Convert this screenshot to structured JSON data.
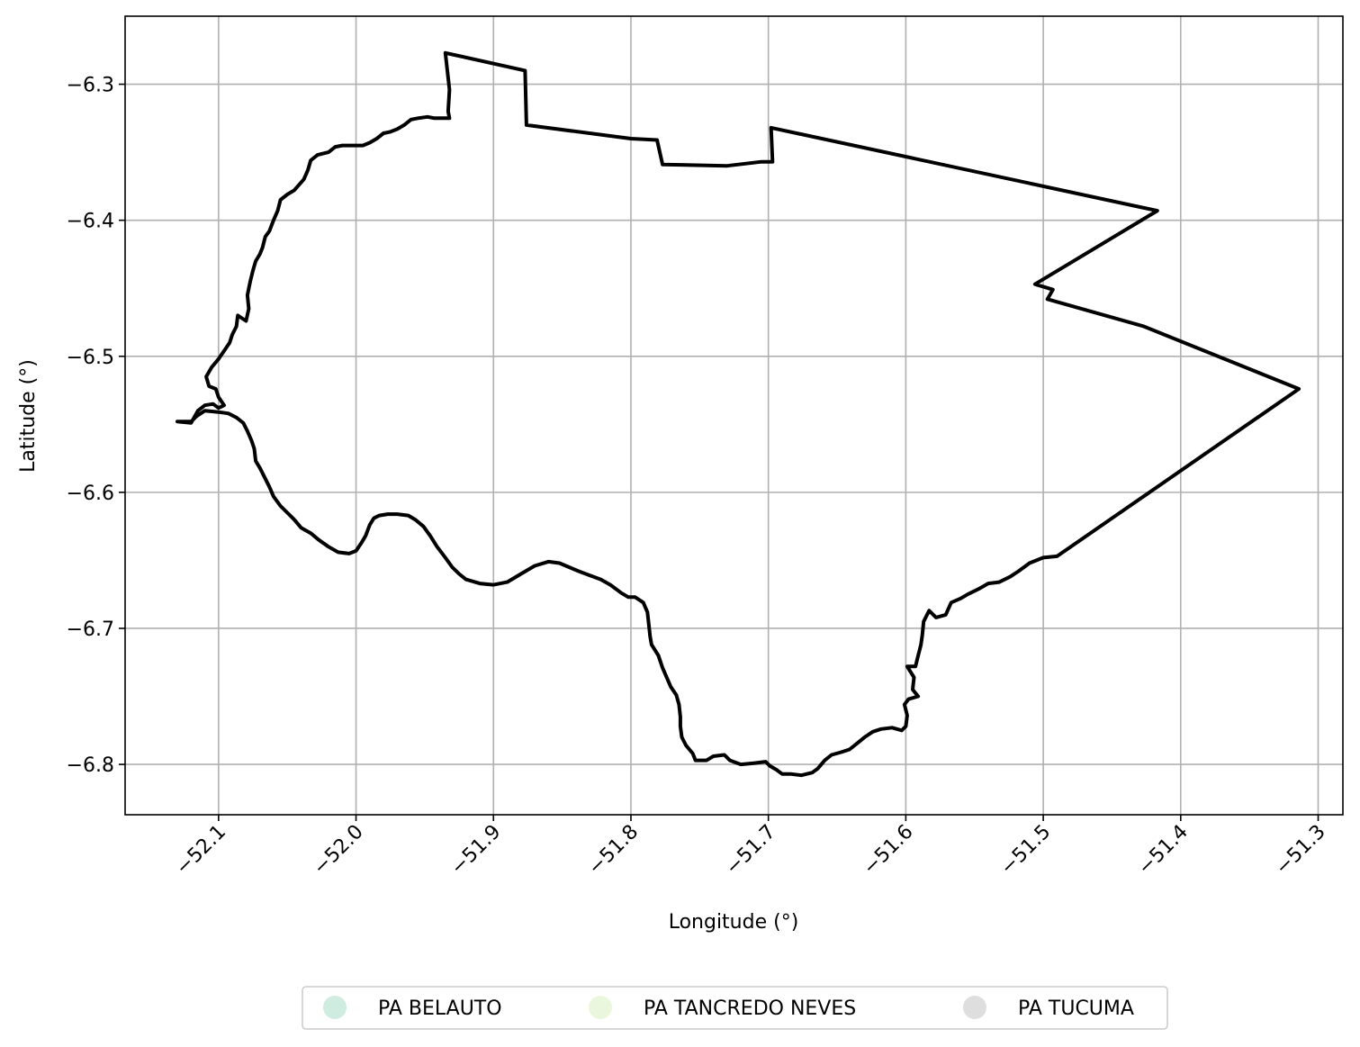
{
  "chart_data": {
    "type": "map",
    "xlabel": "Longitude (°)",
    "ylabel": "Latitude (°)",
    "xlim": [
      -52.168,
      -51.282
    ],
    "ylim": [
      -6.837,
      -6.25
    ],
    "x_ticks": [
      -52.1,
      -52.0,
      -51.9,
      -51.8,
      -51.7,
      -51.6,
      -51.5,
      -51.4,
      -51.3
    ],
    "x_tick_labels": [
      "−52.1",
      "−52.0",
      "−51.9",
      "−51.8",
      "−51.7",
      "−51.6",
      "−51.5",
      "−51.4",
      "−51.3"
    ],
    "y_ticks": [
      -6.3,
      -6.4,
      -6.5,
      -6.6,
      -6.7,
      -6.8
    ],
    "y_tick_labels": [
      "−6.3",
      "−6.4",
      "−6.5",
      "−6.6",
      "−6.7",
      "−6.8"
    ],
    "grid": true,
    "boundary_color": "#000000",
    "legend_placement": "bottom-center",
    "legend": [
      {
        "label": "PA BELAUTO",
        "color": "#cfece0"
      },
      {
        "label": "PA TANCREDO NEVES",
        "color": "#eaf7dc"
      },
      {
        "label": "PA TUCUMA",
        "color": "#dedede"
      }
    ],
    "boundary": [
      [
        -51.935,
        -6.277
      ],
      [
        -51.877,
        -6.29
      ],
      [
        -51.876,
        -6.33
      ],
      [
        -51.8,
        -6.34
      ],
      [
        -51.781,
        -6.341
      ],
      [
        -51.777,
        -6.359
      ],
      [
        -51.73,
        -6.36
      ],
      [
        -51.705,
        -6.357
      ],
      [
        -51.697,
        -6.357
      ],
      [
        -51.698,
        -6.332
      ],
      [
        -51.417,
        -6.393
      ],
      [
        -51.506,
        -6.447
      ],
      [
        -51.493,
        -6.451
      ],
      [
        -51.497,
        -6.458
      ],
      [
        -51.427,
        -6.478
      ],
      [
        -51.314,
        -6.524
      ],
      [
        -51.49,
        -6.647
      ],
      [
        -51.5,
        -6.648
      ],
      [
        -51.51,
        -6.652
      ],
      [
        -51.518,
        -6.658
      ],
      [
        -51.524,
        -6.662
      ],
      [
        -51.532,
        -6.666
      ],
      [
        -51.54,
        -6.667
      ],
      [
        -51.547,
        -6.671
      ],
      [
        -51.555,
        -6.675
      ],
      [
        -51.56,
        -6.678
      ],
      [
        -51.567,
        -6.681
      ],
      [
        -51.571,
        -6.69
      ],
      [
        -51.578,
        -6.692
      ],
      [
        -51.583,
        -6.687
      ],
      [
        -51.587,
        -6.695
      ],
      [
        -51.588,
        -6.705
      ],
      [
        -51.589,
        -6.712
      ],
      [
        -51.591,
        -6.72
      ],
      [
        -51.593,
        -6.728
      ],
      [
        -51.599,
        -6.728
      ],
      [
        -51.594,
        -6.736
      ],
      [
        -51.595,
        -6.745
      ],
      [
        -51.591,
        -6.75
      ],
      [
        -51.598,
        -6.752
      ],
      [
        -51.601,
        -6.756
      ],
      [
        -51.599,
        -6.764
      ],
      [
        -51.6,
        -6.772
      ],
      [
        -51.603,
        -6.775
      ],
      [
        -51.61,
        -6.773
      ],
      [
        -51.618,
        -6.774
      ],
      [
        -51.624,
        -6.776
      ],
      [
        -51.63,
        -6.78
      ],
      [
        -51.636,
        -6.785
      ],
      [
        -51.641,
        -6.789
      ],
      [
        -51.647,
        -6.791
      ],
      [
        -51.654,
        -6.793
      ],
      [
        -51.659,
        -6.797
      ],
      [
        -51.664,
        -6.803
      ],
      [
        -51.668,
        -6.806
      ],
      [
        -51.676,
        -6.808
      ],
      [
        -51.684,
        -6.807
      ],
      [
        -51.69,
        -6.807
      ],
      [
        -51.694,
        -6.804
      ],
      [
        -51.699,
        -6.801
      ],
      [
        -51.702,
        -6.798
      ],
      [
        -51.71,
        -6.799
      ],
      [
        -51.72,
        -6.8
      ],
      [
        -51.728,
        -6.797
      ],
      [
        -51.732,
        -6.793
      ],
      [
        -51.74,
        -6.794
      ],
      [
        -51.745,
        -6.797
      ],
      [
        -51.753,
        -6.797
      ],
      [
        -51.755,
        -6.792
      ],
      [
        -51.76,
        -6.786
      ],
      [
        -51.763,
        -6.78
      ],
      [
        -51.764,
        -6.772
      ],
      [
        -51.764,
        -6.765
      ],
      [
        -51.765,
        -6.756
      ],
      [
        -51.767,
        -6.749
      ],
      [
        -51.771,
        -6.743
      ],
      [
        -51.774,
        -6.736
      ],
      [
        -51.777,
        -6.729
      ],
      [
        -51.78,
        -6.72
      ],
      [
        -51.785,
        -6.712
      ],
      [
        -51.786,
        -6.706
      ],
      [
        -51.787,
        -6.697
      ],
      [
        -51.788,
        -6.688
      ],
      [
        -51.791,
        -6.681
      ],
      [
        -51.797,
        -6.677
      ],
      [
        -51.802,
        -6.677
      ],
      [
        -51.807,
        -6.674
      ],
      [
        -51.815,
        -6.668
      ],
      [
        -51.822,
        -6.664
      ],
      [
        -51.83,
        -6.661
      ],
      [
        -51.838,
        -6.658
      ],
      [
        -51.845,
        -6.655
      ],
      [
        -51.852,
        -6.652
      ],
      [
        -51.86,
        -6.651
      ],
      [
        -51.87,
        -6.654
      ],
      [
        -51.88,
        -6.66
      ],
      [
        -51.89,
        -6.666
      ],
      [
        -51.9,
        -6.668
      ],
      [
        -51.91,
        -6.667
      ],
      [
        -51.92,
        -6.664
      ],
      [
        -51.925,
        -6.66
      ],
      [
        -51.93,
        -6.655
      ],
      [
        -51.935,
        -6.648
      ],
      [
        -51.941,
        -6.64
      ],
      [
        -51.946,
        -6.632
      ],
      [
        -51.951,
        -6.625
      ],
      [
        -51.957,
        -6.62
      ],
      [
        -51.962,
        -6.617
      ],
      [
        -51.97,
        -6.616
      ],
      [
        -51.977,
        -6.616
      ],
      [
        -51.983,
        -6.617
      ],
      [
        -51.987,
        -6.619
      ],
      [
        -51.99,
        -6.624
      ],
      [
        -51.993,
        -6.632
      ],
      [
        -51.996,
        -6.637
      ],
      [
        -52.0,
        -6.643
      ],
      [
        -52.005,
        -6.645
      ],
      [
        -52.013,
        -6.644
      ],
      [
        -52.02,
        -6.64
      ],
      [
        -52.027,
        -6.635
      ],
      [
        -52.033,
        -6.63
      ],
      [
        -52.04,
        -6.626
      ],
      [
        -52.045,
        -6.62
      ],
      [
        -52.05,
        -6.615
      ],
      [
        -52.055,
        -6.61
      ],
      [
        -52.06,
        -6.603
      ],
      [
        -52.063,
        -6.596
      ],
      [
        -52.066,
        -6.59
      ],
      [
        -52.07,
        -6.582
      ],
      [
        -52.073,
        -6.577
      ],
      [
        -52.074,
        -6.568
      ],
      [
        -52.076,
        -6.562
      ],
      [
        -52.079,
        -6.555
      ],
      [
        -52.082,
        -6.549
      ],
      [
        -52.087,
        -6.545
      ],
      [
        -52.093,
        -6.542
      ],
      [
        -52.1,
        -6.541
      ],
      [
        -52.11,
        -6.54
      ],
      [
        -52.116,
        -6.544
      ],
      [
        -52.12,
        -6.548
      ],
      [
        -52.13,
        -6.548
      ],
      [
        -52.12,
        -6.549
      ],
      [
        -52.115,
        -6.54
      ],
      [
        -52.11,
        -6.536
      ],
      [
        -52.104,
        -6.535
      ],
      [
        -52.1,
        -6.538
      ],
      [
        -52.096,
        -6.536
      ],
      [
        -52.1,
        -6.53
      ],
      [
        -52.102,
        -6.524
      ],
      [
        -52.107,
        -6.522
      ],
      [
        -52.109,
        -6.515
      ],
      [
        -52.105,
        -6.508
      ],
      [
        -52.1,
        -6.502
      ],
      [
        -52.096,
        -6.496
      ],
      [
        -52.092,
        -6.49
      ],
      [
        -52.09,
        -6.484
      ],
      [
        -52.087,
        -6.478
      ],
      [
        -52.086,
        -6.47
      ],
      [
        -52.08,
        -6.474
      ],
      [
        -52.078,
        -6.465
      ],
      [
        -52.079,
        -6.455
      ],
      [
        -52.077,
        -6.445
      ],
      [
        -52.075,
        -6.437
      ],
      [
        -52.073,
        -6.43
      ],
      [
        -52.07,
        -6.425
      ],
      [
        -52.068,
        -6.42
      ],
      [
        -52.066,
        -6.412
      ],
      [
        -52.063,
        -6.408
      ],
      [
        -52.06,
        -6.4
      ],
      [
        -52.057,
        -6.393
      ],
      [
        -52.055,
        -6.385
      ],
      [
        -52.05,
        -6.381
      ],
      [
        -52.045,
        -6.378
      ],
      [
        -52.038,
        -6.37
      ],
      [
        -52.035,
        -6.363
      ],
      [
        -52.033,
        -6.356
      ],
      [
        -52.028,
        -6.352
      ],
      [
        -52.02,
        -6.35
      ],
      [
        -52.015,
        -6.346
      ],
      [
        -52.01,
        -6.345
      ],
      [
        -52.002,
        -6.345
      ],
      [
        -51.995,
        -6.345
      ],
      [
        -51.99,
        -6.343
      ],
      [
        -51.985,
        -6.34
      ],
      [
        -51.98,
        -6.336
      ],
      [
        -51.975,
        -6.335
      ],
      [
        -51.97,
        -6.333
      ],
      [
        -51.965,
        -6.33
      ],
      [
        -51.96,
        -6.326
      ],
      [
        -51.955,
        -6.325
      ],
      [
        -51.948,
        -6.324
      ],
      [
        -51.943,
        -6.325
      ],
      [
        -51.938,
        -6.325
      ],
      [
        -51.932,
        -6.325
      ],
      [
        -51.933,
        -6.32
      ],
      [
        -51.932,
        -6.304
      ],
      [
        -51.935,
        -6.277
      ]
    ]
  }
}
